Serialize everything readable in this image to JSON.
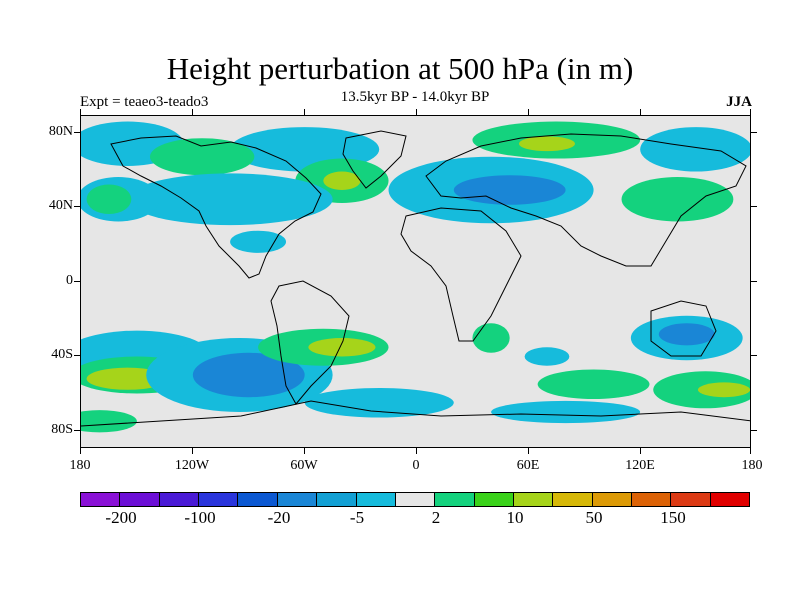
{
  "title": "Height perturbation at 500 hPa (in m)",
  "subtitle": "13.5kyr BP - 14.0kyr BP",
  "left_string": "Expt = teaeo3-teado3",
  "right_string": "JJA",
  "lat_labels": [
    "80N",
    "40N",
    "0",
    "40S",
    "80S"
  ],
  "lon_labels": [
    "180",
    "120W",
    "60W",
    "0",
    "60E",
    "120E",
    "180"
  ],
  "colorbar": {
    "colors": [
      "#8a11d6",
      "#6c0fd6",
      "#4a1ad6",
      "#2a35dc",
      "#0b58d2",
      "#1a86d6",
      "#12a0d4",
      "#16bbdc",
      "#e6e6e6",
      "#14d27e",
      "#3ad21a",
      "#a6d41a",
      "#d6b808",
      "#dc9a06",
      "#dc6206",
      "#dc3a14",
      "#e00000"
    ],
    "labels": [
      "-200",
      "-100",
      "-20",
      "-5",
      "2",
      "10",
      "50",
      "150"
    ]
  },
  "map_data": {
    "projection": "cylindrical-equidistant",
    "lon_range": [
      -180,
      180
    ],
    "lat_range": [
      -90,
      90
    ],
    "fill_regions": [
      {
        "level": "-5",
        "color": "#16bbdc",
        "lon": -155,
        "lat": 75,
        "rlon": 30,
        "rlat": 12
      },
      {
        "level": "-5",
        "color": "#16bbdc",
        "lon": -60,
        "lat": 72,
        "rlon": 40,
        "rlat": 12
      },
      {
        "level": "10",
        "color": "#14d27e",
        "lon": -115,
        "lat": 68,
        "rlon": 28,
        "rlat": 10
      },
      {
        "level": "10",
        "color": "#14d27e",
        "lon": -40,
        "lat": 55,
        "rlon": 25,
        "rlat": 12
      },
      {
        "level": "50",
        "color": "#a6d41a",
        "lon": -40,
        "lat": 55,
        "rlon": 10,
        "rlat": 5
      },
      {
        "level": "-5",
        "color": "#16bbdc",
        "lon": -100,
        "lat": 45,
        "rlon": 55,
        "rlat": 14
      },
      {
        "level": "-5",
        "color": "#16bbdc",
        "lon": -160,
        "lat": 45,
        "rlon": 22,
        "rlat": 12
      },
      {
        "level": "10",
        "color": "#14d27e",
        "lon": -165,
        "lat": 45,
        "rlon": 12,
        "rlat": 8
      },
      {
        "level": "-5",
        "color": "#16bbdc",
        "lon": 40,
        "lat": 50,
        "rlon": 55,
        "rlat": 18
      },
      {
        "level": "-20",
        "color": "#1a86d6",
        "lon": 50,
        "lat": 50,
        "rlon": 30,
        "rlat": 8
      },
      {
        "level": "10",
        "color": "#14d27e",
        "lon": 75,
        "lat": 77,
        "rlon": 45,
        "rlat": 10
      },
      {
        "level": "50",
        "color": "#a6d41a",
        "lon": 70,
        "lat": 75,
        "rlon": 15,
        "rlat": 4
      },
      {
        "level": "-5",
        "color": "#16bbdc",
        "lon": 150,
        "lat": 72,
        "rlon": 30,
        "rlat": 12
      },
      {
        "level": "10",
        "color": "#14d27e",
        "lon": 140,
        "lat": 45,
        "rlon": 30,
        "rlat": 12
      },
      {
        "level": "-5",
        "color": "#16bbdc",
        "lon": -85,
        "lat": 22,
        "rlon": 15,
        "rlat": 6
      },
      {
        "level": "-5",
        "color": "#16bbdc",
        "lon": -150,
        "lat": -40,
        "rlon": 40,
        "rlat": 14
      },
      {
        "level": "10",
        "color": "#14d27e",
        "lon": -150,
        "lat": -50,
        "rlon": 35,
        "rlat": 10
      },
      {
        "level": "50",
        "color": "#a6d41a",
        "lon": -155,
        "lat": -52,
        "rlon": 22,
        "rlat": 6
      },
      {
        "level": "-5",
        "color": "#16bbdc",
        "lon": -95,
        "lat": -50,
        "rlon": 50,
        "rlat": 20
      },
      {
        "level": "-20",
        "color": "#1a86d6",
        "lon": -90,
        "lat": -50,
        "rlon": 30,
        "rlat": 12
      },
      {
        "level": "10",
        "color": "#14d27e",
        "lon": -50,
        "lat": -35,
        "rlon": 35,
        "rlat": 10
      },
      {
        "level": "50",
        "color": "#a6d41a",
        "lon": -40,
        "lat": -35,
        "rlon": 18,
        "rlat": 5
      },
      {
        "level": "10",
        "color": "#14d27e",
        "lon": -170,
        "lat": -75,
        "rlon": 20,
        "rlat": 6
      },
      {
        "level": "-5",
        "color": "#16bbdc",
        "lon": -20,
        "lat": -65,
        "rlon": 40,
        "rlat": 8
      },
      {
        "level": "10",
        "color": "#14d27e",
        "lon": 40,
        "lat": -30,
        "rlon": 10,
        "rlat": 8
      },
      {
        "level": "-5",
        "color": "#16bbdc",
        "lon": 70,
        "lat": -40,
        "rlon": 12,
        "rlat": 5
      },
      {
        "level": "10",
        "color": "#14d27e",
        "lon": 95,
        "lat": -55,
        "rlon": 30,
        "rlat": 8
      },
      {
        "level": "-5",
        "color": "#16bbdc",
        "lon": 80,
        "lat": -70,
        "rlon": 40,
        "rlat": 6
      },
      {
        "level": "-5",
        "color": "#16bbdc",
        "lon": 145,
        "lat": -30,
        "rlon": 30,
        "rlat": 12
      },
      {
        "level": "-20",
        "color": "#1a86d6",
        "lon": 145,
        "lat": -28,
        "rlon": 15,
        "rlat": 6
      },
      {
        "level": "10",
        "color": "#14d27e",
        "lon": 155,
        "lat": -58,
        "rlon": 28,
        "rlat": 10
      },
      {
        "level": "50",
        "color": "#a6d41a",
        "lon": 165,
        "lat": -58,
        "rlon": 14,
        "rlat": 4
      }
    ]
  }
}
